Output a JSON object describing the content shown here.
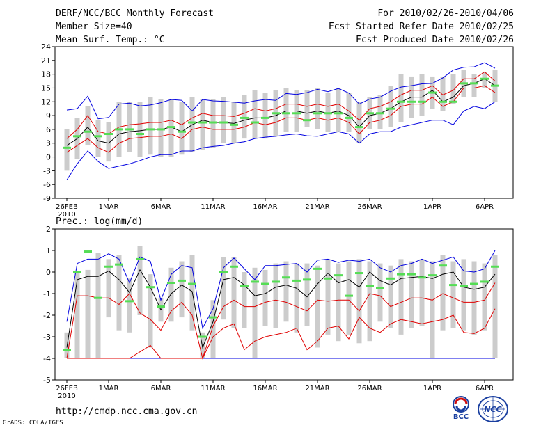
{
  "header": {
    "title": "DERF/NCC/BCC Monthly Forecast",
    "member_size": "Member Size=40",
    "variable": "Mean Surf. Temp.: °C",
    "period": "For 2010/02/26-2010/04/06",
    "started": "Fcst Started Refer Date 2010/02/25",
    "produced": "Fcst Produced Date 2010/02/26"
  },
  "footer": {
    "url": "http://cmdp.ncc.cma.gov.cn",
    "grads": "GrADS: COLA/IGES",
    "logo_bcc": "BCC",
    "logo_ncc": "NCC"
  },
  "colors": {
    "box": "#cccccc",
    "mean": "#000000",
    "spread": "#e00000",
    "extreme": "#0000e0",
    "median": "#55dd55"
  },
  "chart_data": [
    {
      "type": "line",
      "title": "Mean Surf. Temp.: °C",
      "x_labels": [
        "26FEB",
        "1MAR",
        "6MAR",
        "11MAR",
        "16MAR",
        "21MAR",
        "26MAR",
        "1APR",
        "6APR"
      ],
      "x_label_days": [
        0,
        4,
        9,
        14,
        19,
        24,
        29,
        35,
        40
      ],
      "x_year": "2010",
      "ylim": [
        -9,
        24
      ],
      "yticks": [
        -9,
        -6,
        -3,
        0,
        3,
        6,
        9,
        12,
        15,
        18,
        21,
        24
      ],
      "series": [
        {
          "name": "max",
          "values": [
            10.2,
            10.5,
            13.2,
            8.3,
            8.6,
            11.5,
            11.7,
            11.1,
            11.3,
            11.8,
            12.5,
            12.3,
            10.0,
            12.5,
            12.2,
            12.1,
            11.9,
            11.7,
            12.2,
            12.5,
            12.3,
            13.8,
            13.6,
            14.0,
            14.7,
            14.2,
            14.9,
            13.9,
            11.5,
            12.6,
            13.0,
            14.3,
            15.2,
            15.5,
            15.9,
            16.0,
            17.2,
            18.9,
            19.5,
            19.6,
            20.5,
            19.3
          ]
        },
        {
          "name": "plus_sd",
          "values": [
            4.0,
            6.0,
            9.0,
            5.5,
            5.0,
            6.5,
            7.0,
            7.2,
            7.5,
            7.5,
            8.0,
            7.0,
            8.5,
            9.5,
            9.0,
            9.0,
            8.8,
            9.5,
            10.5,
            10.0,
            10.5,
            11.5,
            11.5,
            11.0,
            11.5,
            11.0,
            11.5,
            10.0,
            8.0,
            10.5,
            11.0,
            12.0,
            13.5,
            14.5,
            14.5,
            15.5,
            13.5,
            14.5,
            17.0,
            17.0,
            18.5,
            16.5
          ]
        },
        {
          "name": "mean",
          "values": [
            2.5,
            4.0,
            6.5,
            3.5,
            3.0,
            5.0,
            5.5,
            5.7,
            6.0,
            6.0,
            6.5,
            5.5,
            7.0,
            8.0,
            7.5,
            7.5,
            7.3,
            8.0,
            8.5,
            8.5,
            9.0,
            10.0,
            10.0,
            9.5,
            10.0,
            9.5,
            10.0,
            9.0,
            6.5,
            9.0,
            9.5,
            10.5,
            12.0,
            13.0,
            13.0,
            14.5,
            12.0,
            13.0,
            15.5,
            16.0,
            17.0,
            15.5
          ]
        },
        {
          "name": "minus_sd",
          "values": [
            1.0,
            2.5,
            4.0,
            2.0,
            1.0,
            3.0,
            4.0,
            4.2,
            4.5,
            4.5,
            5.0,
            4.0,
            6.0,
            6.5,
            6.0,
            6.0,
            6.0,
            6.5,
            7.5,
            7.0,
            7.5,
            8.5,
            8.5,
            8.0,
            8.5,
            8.0,
            8.5,
            7.5,
            5.0,
            7.5,
            8.0,
            9.0,
            11.0,
            11.5,
            11.5,
            13.0,
            11.0,
            12.0,
            15.0,
            15.0,
            15.5,
            14.0
          ]
        },
        {
          "name": "min",
          "values": [
            -5.0,
            -1.5,
            1.3,
            -1.0,
            -2.5,
            -2.0,
            -1.5,
            -0.8,
            0.0,
            0.5,
            0.5,
            1.3,
            1.3,
            2.0,
            2.3,
            2.5,
            3.0,
            3.3,
            4.0,
            4.3,
            4.5,
            4.8,
            5.0,
            4.6,
            4.5,
            5.0,
            5.5,
            5.0,
            3.0,
            5.0,
            5.5,
            5.5,
            6.5,
            7.0,
            7.5,
            8.0,
            8.0,
            7.0,
            10.0,
            11.0,
            10.5,
            12.0
          ]
        },
        {
          "name": "box_low",
          "values": [
            -3.0,
            -0.5,
            2.5,
            0.0,
            -1.0,
            0.0,
            1.0,
            0.0,
            0.5,
            0.0,
            0.0,
            0.5,
            1.0,
            1.5,
            2.0,
            3.0,
            3.0,
            4.0,
            4.0,
            4.0,
            4.5,
            5.5,
            5.5,
            6.5,
            6.0,
            5.5,
            5.5,
            5.5,
            3.0,
            6.0,
            6.0,
            6.5,
            7.5,
            8.5,
            9.0,
            10.5,
            10.0,
            11.5,
            13.0,
            13.0,
            15.0,
            12.0
          ]
        },
        {
          "name": "box_high",
          "values": [
            6.0,
            8.5,
            11.0,
            8.0,
            7.5,
            12.0,
            12.0,
            12.0,
            13.0,
            12.5,
            12.5,
            12.0,
            13.0,
            12.5,
            12.5,
            13.0,
            12.0,
            13.5,
            14.5,
            14.0,
            14.5,
            15.0,
            14.5,
            14.5,
            15.0,
            14.0,
            15.0,
            14.0,
            12.0,
            13.0,
            13.5,
            15.5,
            18.0,
            17.5,
            18.0,
            17.5,
            17.5,
            18.0,
            19.0,
            18.0,
            18.5,
            19.0
          ]
        },
        {
          "name": "median",
          "values": [
            2.0,
            4.5,
            5.5,
            4.5,
            5.0,
            6.0,
            6.0,
            5.0,
            6.0,
            6.0,
            6.5,
            5.5,
            7.5,
            7.5,
            7.5,
            7.5,
            7.0,
            8.5,
            7.5,
            8.5,
            9.5,
            9.5,
            9.5,
            8.0,
            9.5,
            9.5,
            9.5,
            8.5,
            6.5,
            9.5,
            9.5,
            10.5,
            12.0,
            12.0,
            12.0,
            14.0,
            12.0,
            12.0,
            16.0,
            16.0,
            17.0,
            15.5
          ]
        }
      ]
    },
    {
      "type": "line",
      "title": "Prec.: log(mm/d)",
      "x_labels": [
        "26FEB",
        "1MAR",
        "6MAR",
        "11MAR",
        "16MAR",
        "21MAR",
        "26MAR",
        "1APR",
        "6APR"
      ],
      "x_label_days": [
        0,
        4,
        9,
        14,
        19,
        24,
        29,
        35,
        40
      ],
      "x_year": "2010",
      "ylim": [
        -5,
        2
      ],
      "yticks": [
        -5,
        -4,
        -3,
        -2,
        -1,
        0,
        1,
        2
      ],
      "series": [
        {
          "name": "max",
          "values": [
            -2.3,
            0.4,
            0.6,
            0.6,
            0.85,
            0.6,
            -0.5,
            0.7,
            0.5,
            -1.3,
            -0.1,
            0.3,
            0.2,
            -2.6,
            -1.7,
            0.2,
            0.65,
            0.15,
            -0.35,
            0.3,
            0.3,
            0.35,
            0.4,
            0.0,
            0.55,
            0.6,
            0.45,
            0.55,
            0.5,
            0.6,
            0.2,
            0.0,
            0.3,
            0.4,
            0.6,
            0.4,
            0.55,
            0.7,
            0.05,
            0.0,
            0.15,
            1.0
          ]
        },
        {
          "name": "mean",
          "values": [
            -3.5,
            -0.35,
            -0.2,
            -0.2,
            0.05,
            -0.35,
            -0.95,
            0.1,
            -0.7,
            -1.75,
            -1.0,
            -0.6,
            -0.9,
            -3.5,
            -2.3,
            -0.35,
            -0.25,
            -0.6,
            -1.1,
            -1.0,
            -0.7,
            -0.6,
            -0.75,
            -1.15,
            -0.55,
            -0.05,
            -0.5,
            -0.35,
            -0.7,
            0.0,
            -0.4,
            -0.6,
            -0.3,
            -0.25,
            -0.2,
            -0.3,
            -0.1,
            0.0,
            -0.7,
            -0.8,
            -0.7,
            -0.1
          ]
        },
        {
          "name": "plus_sd",
          "values": [
            -4.0,
            -1.1,
            -1.1,
            -1.2,
            -1.2,
            -1.5,
            -1.0,
            -1.9,
            -2.2,
            -2.7,
            -1.8,
            -1.4,
            -2.0,
            -4.0,
            -2.5,
            -1.6,
            -1.3,
            -1.6,
            -1.6,
            -1.4,
            -1.3,
            -1.4,
            -1.6,
            -1.8,
            -1.3,
            -1.35,
            -1.3,
            -1.3,
            -1.8,
            -1.0,
            -1.1,
            -1.6,
            -1.4,
            -1.2,
            -1.2,
            -1.3,
            -1.0,
            -1.2,
            -1.4,
            -1.4,
            -1.3,
            -0.5
          ]
        },
        {
          "name": "minus_sd",
          "values": [
            -4.0,
            -4.0,
            -4.0,
            -4.0,
            -4.0,
            -4.0,
            -4.0,
            -3.7,
            -3.4,
            -4.0,
            -4.0,
            -4.0,
            -4.0,
            -4.0,
            -3.0,
            -2.6,
            -2.4,
            -3.6,
            -3.2,
            -3.0,
            -2.9,
            -2.8,
            -2.6,
            -3.6,
            -3.2,
            -2.6,
            -2.5,
            -3.1,
            -2.1,
            -2.6,
            -2.8,
            -2.4,
            -2.2,
            -2.3,
            -2.4,
            -2.3,
            -2.2,
            -2.0,
            -2.8,
            -2.85,
            -2.6,
            -1.7
          ]
        },
        {
          "name": "min",
          "values": [
            -4,
            -4,
            -4,
            -4,
            -4,
            -4,
            -4,
            -4,
            -4,
            -4,
            -4,
            -4,
            -4,
            -4,
            -4,
            -4,
            -4,
            -4,
            -4,
            -4,
            -4,
            -4,
            -4,
            -4,
            -4,
            -4,
            -4,
            -4,
            -4,
            -4,
            -4,
            -4,
            -4,
            -4,
            -4,
            -4,
            -4,
            -4,
            -4,
            -4,
            -4,
            -4
          ]
        },
        {
          "name": "box_low",
          "values": [
            -4,
            -4,
            -4,
            -4,
            -2.1,
            -2.7,
            -2.8,
            -2.0,
            -3.5,
            -2.3,
            -2.3,
            -2.1,
            -2.7,
            -4.0,
            -4.0,
            -2.2,
            -2.6,
            -2.6,
            -4,
            -2.5,
            -2.6,
            -2.3,
            -2.8,
            -2.5,
            -3.5,
            -2.9,
            -3.2,
            -2.9,
            -3.3,
            -3.2,
            -2.3,
            -2.6,
            -2.9,
            -2.6,
            -2.5,
            -4,
            -2.7,
            -2.6,
            -2.7,
            -2.9,
            -2.7,
            -4
          ]
        },
        {
          "name": "box_high",
          "values": [
            -2.8,
            0.0,
            0.1,
            0.9,
            0.6,
            0.8,
            -0.3,
            1.2,
            -0.1,
            -1.2,
            0.2,
            0.5,
            0.8,
            -2.8,
            -1.3,
            0.7,
            0.7,
            0.0,
            0.2,
            0.1,
            0.4,
            0.5,
            0.4,
            0.4,
            0.3,
            0.6,
            0.4,
            0.5,
            0.6,
            0.5,
            0.4,
            0.3,
            0.6,
            0.5,
            0.6,
            0.5,
            0.8,
            0.5,
            0.6,
            0.5,
            0.4,
            0.8
          ]
        },
        {
          "name": "median",
          "values": [
            -3.6,
            0.0,
            0.95,
            -1.2,
            0.25,
            0.35,
            -1.35,
            0.6,
            -0.7,
            -1.6,
            -0.5,
            -0.4,
            -0.55,
            -3.0,
            -2.1,
            0.0,
            0.25,
            -0.65,
            -0.45,
            -0.55,
            -0.45,
            -0.25,
            -0.4,
            -0.35,
            0.15,
            -0.3,
            -0.15,
            -1.1,
            -0.05,
            -0.65,
            -0.75,
            -0.3,
            -0.1,
            -0.1,
            -0.25,
            -0.15,
            0.3,
            -0.6,
            -0.65,
            -0.55,
            -0.45,
            0.25
          ]
        }
      ]
    }
  ]
}
